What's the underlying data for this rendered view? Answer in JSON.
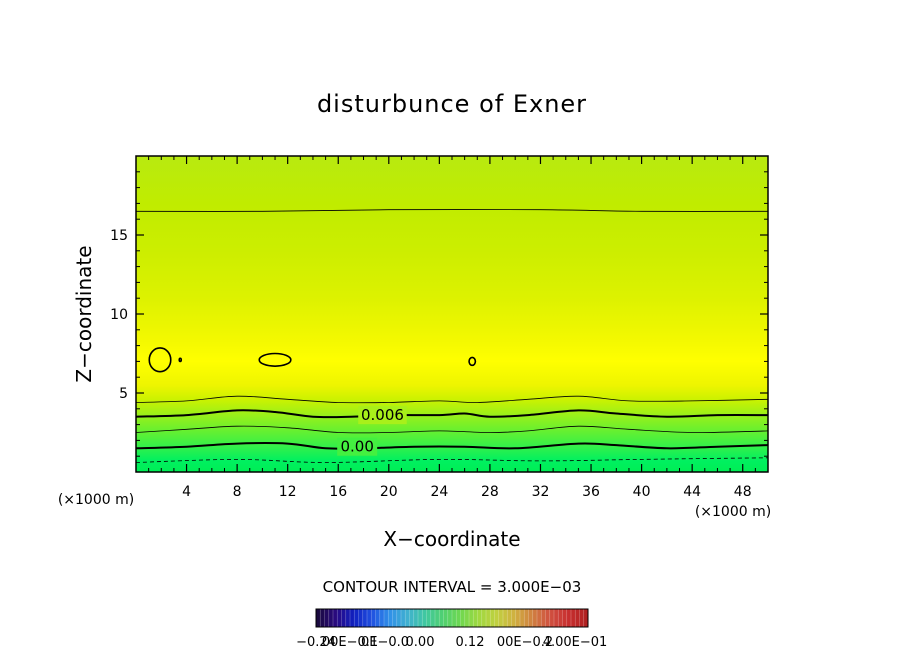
{
  "chart_data": {
    "type": "contour",
    "title": "disturbunce of Exner",
    "xlabel": "X−coordinate",
    "ylabel": "Z−coordinate",
    "x_multiplier_left": "(×1000 m)",
    "x_multiplier_right": "(×1000 m)",
    "xlim": [
      0,
      50
    ],
    "ylim": [
      0,
      20
    ],
    "x_ticks": [
      4,
      8,
      12,
      16,
      20,
      24,
      28,
      32,
      36,
      40,
      44,
      48
    ],
    "y_ticks": [
      5,
      10,
      15
    ],
    "contour_interval_text": "CONTOUR INTERVAL = 3.000E−03",
    "contour_interval": 0.003,
    "contour_labels": [
      {
        "text": "0.006",
        "x": 19.5,
        "z": 3.6
      },
      {
        "text": "0.00",
        "x": 17.5,
        "z": 1.6
      }
    ],
    "contours": [
      {
        "style": "thin",
        "points": [
          [
            0,
            16.5
          ],
          [
            10,
            16.5
          ],
          [
            20,
            16.6
          ],
          [
            32,
            16.6
          ],
          [
            40,
            16.5
          ],
          [
            50,
            16.5
          ]
        ]
      },
      {
        "style": "thin",
        "points": [
          [
            0,
            4.4
          ],
          [
            4,
            4.5
          ],
          [
            8,
            4.8
          ],
          [
            12,
            4.6
          ],
          [
            16,
            4.4
          ],
          [
            20,
            4.4
          ],
          [
            24,
            4.5
          ],
          [
            27,
            4.4
          ],
          [
            31,
            4.6
          ],
          [
            35,
            4.8
          ],
          [
            39,
            4.5
          ],
          [
            44,
            4.5
          ],
          [
            50,
            4.6
          ]
        ]
      },
      {
        "style": "bold",
        "points": [
          [
            0,
            3.5
          ],
          [
            4,
            3.6
          ],
          [
            8,
            3.9
          ],
          [
            11,
            3.8
          ],
          [
            14,
            3.5
          ],
          [
            17,
            3.5
          ],
          [
            20,
            3.6
          ],
          [
            24,
            3.6
          ],
          [
            26,
            3.7
          ],
          [
            28,
            3.5
          ],
          [
            31,
            3.6
          ],
          [
            35,
            3.9
          ],
          [
            38,
            3.7
          ],
          [
            42,
            3.5
          ],
          [
            46,
            3.6
          ],
          [
            50,
            3.6
          ]
        ]
      },
      {
        "style": "thin",
        "points": [
          [
            0,
            2.5
          ],
          [
            4,
            2.7
          ],
          [
            8,
            2.9
          ],
          [
            12,
            2.8
          ],
          [
            16,
            2.5
          ],
          [
            20,
            2.5
          ],
          [
            24,
            2.6
          ],
          [
            28,
            2.5
          ],
          [
            31,
            2.6
          ],
          [
            35,
            2.9
          ],
          [
            39,
            2.7
          ],
          [
            44,
            2.5
          ],
          [
            50,
            2.6
          ]
        ]
      },
      {
        "style": "bold",
        "points": [
          [
            0,
            1.5
          ],
          [
            4,
            1.6
          ],
          [
            8,
            1.8
          ],
          [
            12,
            1.8
          ],
          [
            15,
            1.5
          ],
          [
            18,
            1.5
          ],
          [
            22,
            1.6
          ],
          [
            26,
            1.6
          ],
          [
            30,
            1.5
          ],
          [
            35,
            1.8
          ],
          [
            38,
            1.7
          ],
          [
            42,
            1.5
          ],
          [
            46,
            1.6
          ],
          [
            50,
            1.7
          ]
        ]
      },
      {
        "style": "dashed",
        "points": [
          [
            0,
            0.6
          ],
          [
            8,
            0.8
          ],
          [
            15,
            0.6
          ],
          [
            24,
            0.8
          ],
          [
            32,
            0.7
          ],
          [
            40,
            0.8
          ],
          [
            50,
            0.9
          ]
        ]
      }
    ],
    "closed_contours": [
      {
        "cx": 1.9,
        "cz": 7.1,
        "rx": 0.85,
        "rz": 0.75
      },
      {
        "cx": 11.0,
        "cz": 7.1,
        "rx": 1.25,
        "rz": 0.4
      },
      {
        "cx": 3.5,
        "cz": 7.1,
        "rx": 0.08,
        "rz": 0.1
      },
      {
        "cx": 26.6,
        "cz": 7.0,
        "rx": 0.25,
        "rz": 0.25
      }
    ],
    "field_color_bands_by_z": [
      {
        "z": 0,
        "color": "#00ee55"
      },
      {
        "z": 0.7,
        "color": "#00f060"
      },
      {
        "z": 1.6,
        "color": "#33f04a"
      },
      {
        "z": 2.6,
        "color": "#66f030"
      },
      {
        "z": 3.6,
        "color": "#99f01a"
      },
      {
        "z": 4.6,
        "color": "#ccf200"
      },
      {
        "z": 5.5,
        "color": "#eef500"
      },
      {
        "z": 7.0,
        "color": "#ffff00"
      },
      {
        "z": 8.5,
        "color": "#f2f800"
      },
      {
        "z": 11.0,
        "color": "#ddf200"
      },
      {
        "z": 14.0,
        "color": "#ccee00"
      },
      {
        "z": 17.0,
        "color": "#c0ec00"
      },
      {
        "z": 20.0,
        "color": "#b8ea10"
      }
    ],
    "colorbar": {
      "tick_labels": [
        "−0.24",
        "00E−0.1",
        "0E−0.0",
        "0.00",
        "0.12",
        "00E−0.2",
        "4.00E−01"
      ],
      "colors": [
        "#1a0a40",
        "#2a0a80",
        "#1020c0",
        "#2050e0",
        "#3090e8",
        "#40b0d0",
        "#40c8a0",
        "#50d070",
        "#70d850",
        "#a0d840",
        "#c0d040",
        "#d0b040",
        "#d08040",
        "#d05040",
        "#c83030",
        "#b02020"
      ]
    }
  }
}
